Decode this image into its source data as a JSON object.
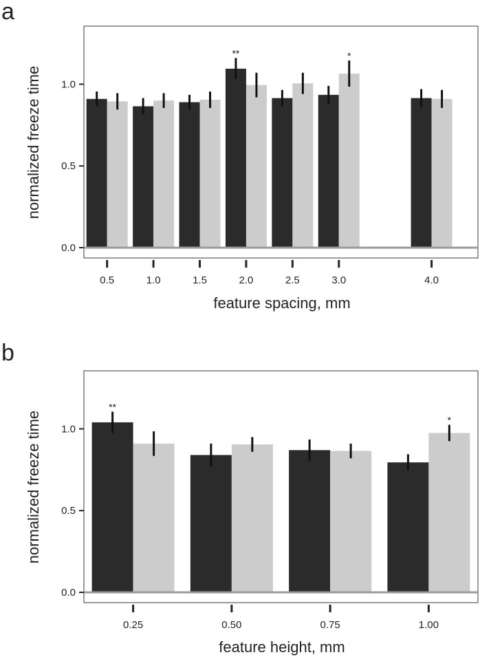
{
  "panels": [
    {
      "letter": "a"
    },
    {
      "letter": "b"
    }
  ],
  "colors": {
    "series_dark": "#2b2b2b",
    "series_light": "#cccccc",
    "errorbar": "#111111",
    "frame": "#7a7a7a",
    "zeroline": "#9a9a9a"
  },
  "chart_data": [
    {
      "type": "bar",
      "title": "",
      "xlabel": "feature spacing, mm",
      "ylabel": "normalized freeze time",
      "ylim": [
        0,
        1.35
      ],
      "yticks": [
        "0.0",
        "0.5",
        "1.0"
      ],
      "xlim": [
        0.25,
        4.5
      ],
      "x_numeric": [
        0.5,
        1.0,
        1.5,
        2.0,
        2.5,
        3.0,
        4.0
      ],
      "categories": [
        "0.5",
        "1.0",
        "1.5",
        "2.0",
        "2.5",
        "3.0",
        "4.0"
      ],
      "legend": "none",
      "grid": false,
      "series": [
        {
          "values": [
            0.91,
            0.865,
            0.89,
            1.095,
            0.915,
            0.935,
            0.915
          ],
          "errors": [
            0.045,
            0.05,
            0.045,
            0.065,
            0.05,
            0.055,
            0.055
          ]
        },
        {
          "values": [
            0.895,
            0.9,
            0.905,
            0.995,
            1.005,
            1.065,
            0.91
          ],
          "errors": [
            0.05,
            0.045,
            0.05,
            0.075,
            0.065,
            0.08,
            0.055
          ]
        }
      ],
      "annotations": [
        {
          "category": "2.0",
          "series": 0,
          "text": "**"
        },
        {
          "category": "3.0",
          "series": 1,
          "text": "*"
        }
      ]
    },
    {
      "type": "bar",
      "title": "",
      "xlabel": "feature height, mm",
      "ylabel": "normalized freeze time",
      "ylim": [
        0,
        1.35
      ],
      "yticks": [
        "0.0",
        "0.5",
        "1.0"
      ],
      "xlim": [
        0.125,
        1.125
      ],
      "x_numeric": [
        0.25,
        0.5,
        0.75,
        1.0
      ],
      "categories": [
        "0.25",
        "0.50",
        "0.75",
        "1.00"
      ],
      "legend": "none",
      "grid": false,
      "series": [
        {
          "values": [
            1.04,
            0.84,
            0.87,
            0.795
          ],
          "errors": [
            0.065,
            0.07,
            0.065,
            0.05
          ]
        },
        {
          "values": [
            0.91,
            0.905,
            0.865,
            0.975
          ],
          "errors": [
            0.075,
            0.045,
            0.045,
            0.05
          ]
        }
      ],
      "annotations": [
        {
          "category": "0.25",
          "series": 0,
          "text": "**"
        },
        {
          "category": "1.00",
          "series": 1,
          "text": "*"
        }
      ]
    }
  ]
}
